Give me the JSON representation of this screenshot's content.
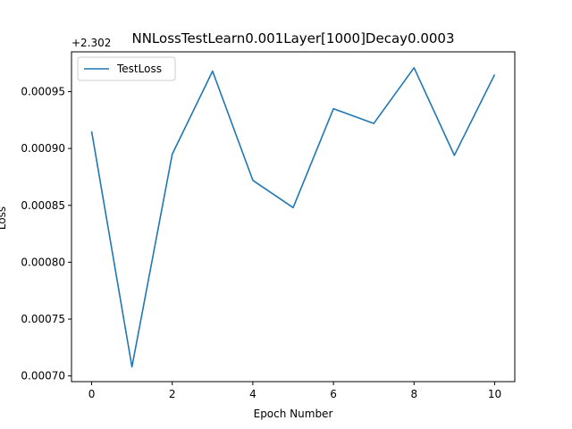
{
  "chart_data": {
    "type": "line",
    "title": "NNLossTestLearn0.001Layer[1000]Decay0.0003",
    "xlabel": "Epoch Number",
    "ylabel": "Loss",
    "y_offset_label": "+2.302",
    "xlim": [
      -0.5,
      10.5
    ],
    "ylim": [
      0.000695,
      0.000985
    ],
    "x_ticks": [
      0,
      2,
      4,
      6,
      8,
      10
    ],
    "x_tick_labels": [
      "0",
      "2",
      "4",
      "6",
      "8",
      "10"
    ],
    "y_ticks": [
      0.0007,
      0.00075,
      0.0008,
      0.00085,
      0.0009,
      0.00095
    ],
    "y_tick_labels": [
      "0.00070",
      "0.00075",
      "0.00080",
      "0.00085",
      "0.00090",
      "0.00095"
    ],
    "grid": false,
    "legend_position": "top-left",
    "series": [
      {
        "name": "TestLoss",
        "color": "#1f77b4",
        "x": [
          0,
          1,
          2,
          3,
          4,
          5,
          6,
          7,
          8,
          9,
          10
        ],
        "y": [
          0.000915,
          0.000708,
          0.000895,
          0.000968,
          0.000872,
          0.000848,
          0.000935,
          0.000922,
          0.000971,
          0.000894,
          0.000965
        ]
      }
    ]
  }
}
